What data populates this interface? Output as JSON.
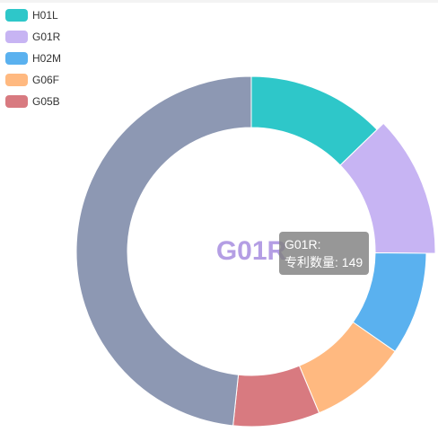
{
  "chart_data": {
    "type": "pie",
    "variant": "donut",
    "categories": [
      "H01L",
      "G01R",
      "H02M",
      "G06F",
      "G05B",
      ""
    ],
    "values": [
      153,
      149,
      114,
      108,
      96,
      580
    ],
    "colors": [
      "#2ec7c9",
      "#c7b4f3",
      "#5ab1ef",
      "#ffb980",
      "#d87a80",
      "#8d98b3"
    ],
    "legend": [
      "H01L",
      "G01R",
      "H02M",
      "G06F",
      "G05B"
    ],
    "legend_position": "top-left",
    "highlighted": "G01R",
    "center_label": "G01R",
    "center_label_color": "#b49ee4"
  },
  "tooltip": {
    "series": "G01R",
    "separator": ":",
    "metric": "专利数量",
    "value_text": "149"
  }
}
